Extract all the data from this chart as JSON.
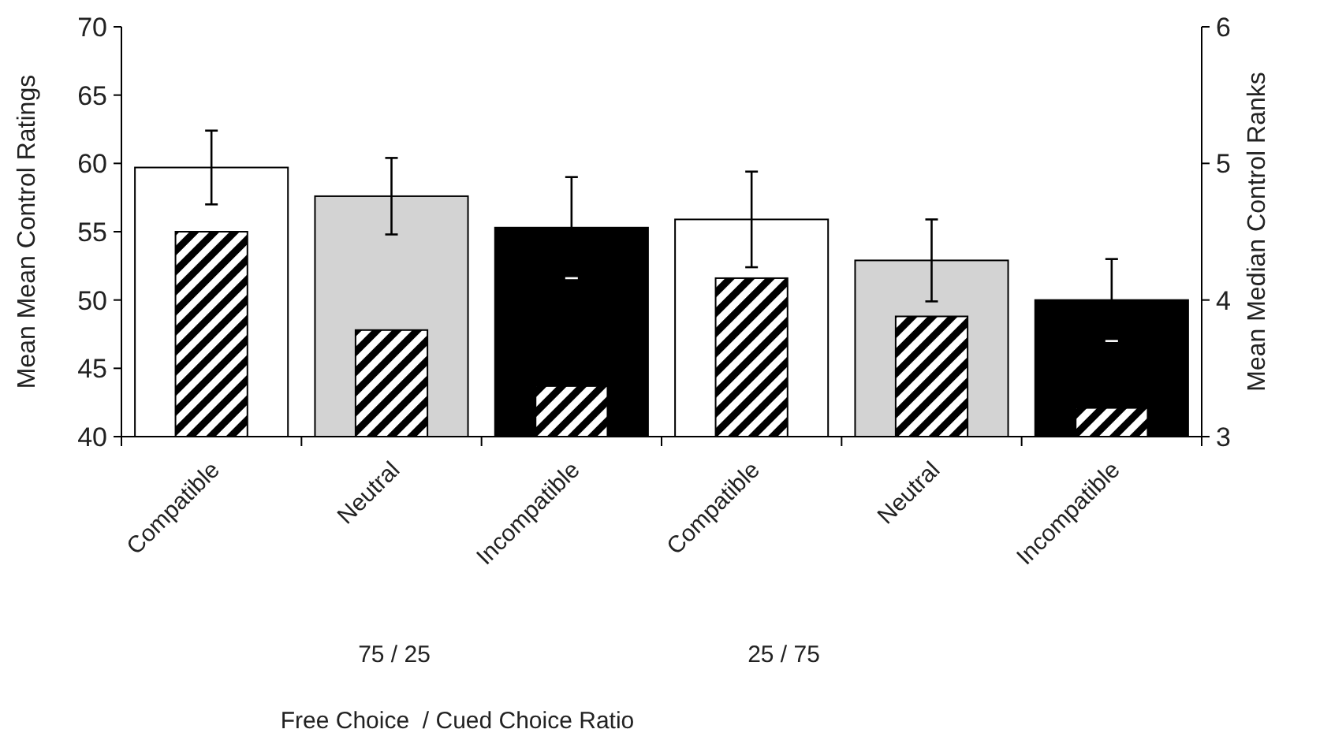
{
  "chart_data": {
    "type": "bar",
    "ylabel": "Mean Mean Control Ratings",
    "y2label": "Mean Median Control Ranks",
    "categories": [
      "Compatible",
      "Neutral",
      "Incompatible",
      "Compatible",
      "Neutral",
      "Incompatible"
    ],
    "series": [
      {
        "type": "bar",
        "colors": [
          "#ffffff",
          "#d3d3d3",
          "#000000",
          "#ffffff",
          "#d3d3d3",
          "#000000"
        ],
        "values": [
          59.7,
          57.6,
          55.3,
          55.9,
          52.9,
          50.0
        ],
        "errors": [
          2.7,
          2.8,
          3.7,
          3.5,
          3.0,
          3.0
        ]
      },
      {
        "type": "bar",
        "axis": "y2",
        "color": "#000000",
        "values": [
          4.5,
          3.78,
          3.37,
          4.16,
          3.88,
          3.21
        ]
      }
    ],
    "ylim": [
      40,
      70
    ],
    "yticks": [
      40,
      45,
      50,
      55,
      60,
      65,
      70
    ],
    "y2lim": [
      3,
      6
    ],
    "y2ticks": [
      3,
      4,
      5,
      6
    ],
    "annotations": [
      "75 / 25",
      "25 / 75",
      "Free Choice  / Cued Choice Ratio"
    ],
    "grid": false
  }
}
